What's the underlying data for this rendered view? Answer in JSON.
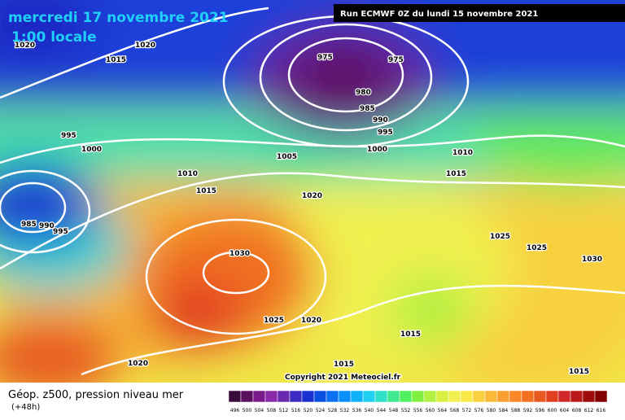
{
  "header": {
    "date": "mercredi 17 novembre 2021",
    "time": "1:00 locale",
    "run": "Run ECMWF 0Z du lundi 15 novembre 2021"
  },
  "map": {
    "isobar_labels": [
      "1020",
      "1015",
      "1020",
      "975",
      "975",
      "980",
      "985",
      "990",
      "995",
      "995",
      "1000",
      "1000",
      "1005",
      "1010",
      "1010",
      "1015",
      "1015",
      "1020",
      "985",
      "990",
      "995",
      "1025",
      "1025",
      "1030",
      "1030",
      "1025",
      "1020",
      "1015",
      "1015",
      "1020",
      "1015"
    ],
    "copyright": "Copyright 2021 Meteociel.fr"
  },
  "legend": {
    "title": "Géop. z500, pression niveau mer",
    "lead": "(+48h)",
    "ticks": [
      496,
      500,
      504,
      508,
      512,
      516,
      520,
      524,
      528,
      532,
      536,
      540,
      544,
      548,
      552,
      556,
      560,
      564,
      568,
      572,
      576,
      580,
      584,
      588,
      592,
      596,
      600,
      604,
      608,
      612,
      616
    ],
    "colors": [
      "#3a0a3a",
      "#5a1060",
      "#7a1a8a",
      "#8a2aa8",
      "#6a2ab0",
      "#3a2ac0",
      "#1a30d0",
      "#0a50e0",
      "#0a70f0",
      "#0a90f8",
      "#10b0f8",
      "#20d0f0",
      "#30e0c8",
      "#40e890",
      "#50f060",
      "#80f040",
      "#b0f040",
      "#d8f040",
      "#f0f050",
      "#f8e848",
      "#f8d040",
      "#f8b838",
      "#f8a030",
      "#f88828",
      "#f07020",
      "#e85820",
      "#e04020",
      "#d02828",
      "#b81818",
      "#a00c0c",
      "#800000"
    ]
  }
}
